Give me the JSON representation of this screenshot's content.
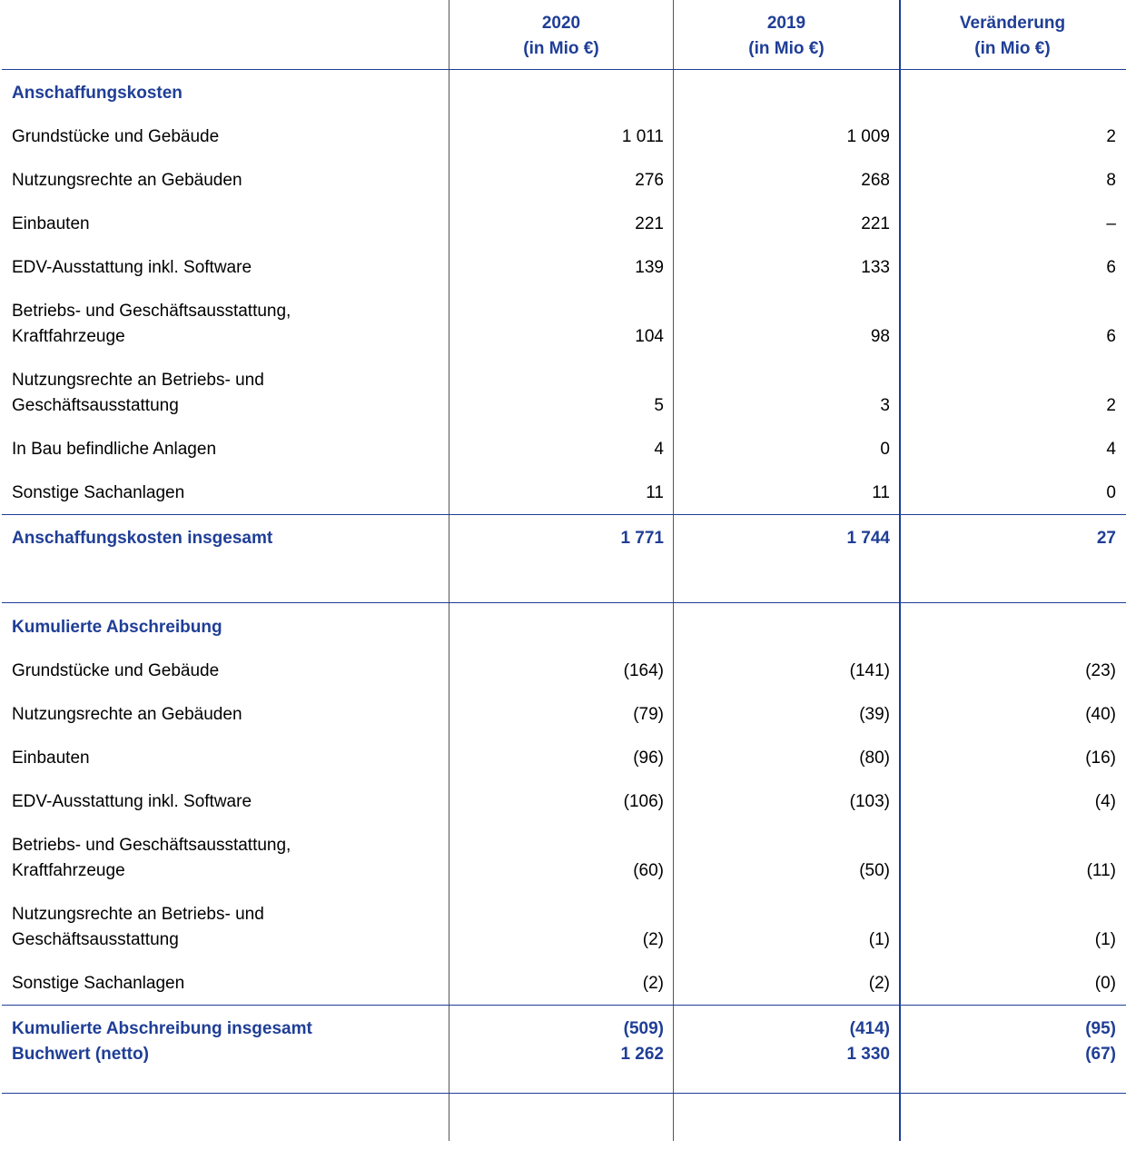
{
  "header": {
    "columns": [
      {
        "line1": "2020",
        "line2": "(in Mio €)"
      },
      {
        "line1": "2019",
        "line2": "(in Mio €)"
      },
      {
        "line1": "Veränderung",
        "line2": "(in Mio €)"
      }
    ]
  },
  "sections": [
    {
      "title": "Anschaffungskosten",
      "rows": [
        {
          "label": [
            "Grundstücke und Gebäude"
          ],
          "values": [
            "1 011",
            "1 009",
            "2"
          ]
        },
        {
          "label": [
            "Nutzungsrechte an Gebäuden"
          ],
          "values": [
            "276",
            "268",
            "8"
          ]
        },
        {
          "label": [
            "Einbauten"
          ],
          "values": [
            "221",
            "221",
            "–"
          ]
        },
        {
          "label": [
            "EDV-Ausstattung inkl. Software"
          ],
          "values": [
            "139",
            "133",
            "6"
          ]
        },
        {
          "label": [
            "Betriebs- und Geschäftsausstattung,",
            "Kraftfahrzeuge"
          ],
          "values": [
            "104",
            "98",
            "6"
          ]
        },
        {
          "label": [
            "Nutzungsrechte an Betriebs- und",
            "Geschäftsausstattung"
          ],
          "values": [
            "5",
            "3",
            "2"
          ]
        },
        {
          "label": [
            "In Bau befindliche Anlagen"
          ],
          "values": [
            "4",
            "0",
            "4"
          ]
        },
        {
          "label": [
            "Sonstige Sachanlagen"
          ],
          "values": [
            "11",
            "11",
            "0"
          ]
        }
      ],
      "total": {
        "label": "Anschaffungskosten insgesamt",
        "values": [
          "1 771",
          "1 744",
          "27"
        ]
      }
    },
    {
      "title": "Kumulierte Abschreibung",
      "rows": [
        {
          "label": [
            "Grundstücke und Gebäude"
          ],
          "values": [
            "(164)",
            "(141)",
            "(23)"
          ]
        },
        {
          "label": [
            "Nutzungsrechte an Gebäuden"
          ],
          "values": [
            "(79)",
            "(39)",
            "(40)"
          ]
        },
        {
          "label": [
            "Einbauten"
          ],
          "values": [
            "(96)",
            "(80)",
            "(16)"
          ]
        },
        {
          "label": [
            "EDV-Ausstattung inkl. Software"
          ],
          "values": [
            "(106)",
            "(103)",
            "(4)"
          ]
        },
        {
          "label": [
            "Betriebs- und Geschäftsausstattung,",
            "Kraftfahrzeuge"
          ],
          "values": [
            "(60)",
            "(50)",
            "(11)"
          ]
        },
        {
          "label": [
            "Nutzungsrechte an Betriebs- und",
            "Geschäftsausstattung"
          ],
          "values": [
            "(2)",
            "(1)",
            "(1)"
          ]
        },
        {
          "label": [
            "Sonstige Sachanlagen"
          ],
          "values": [
            "(2)",
            "(2)",
            "(0)"
          ]
        }
      ],
      "total": {
        "label": "Kumulierte Abschreibung insgesamt",
        "values": [
          "(509)",
          "(414)",
          "(95)"
        ]
      }
    }
  ],
  "net": {
    "label": "Buchwert (netto)",
    "values": [
      "1 262",
      "1 330",
      "(67)"
    ]
  }
}
